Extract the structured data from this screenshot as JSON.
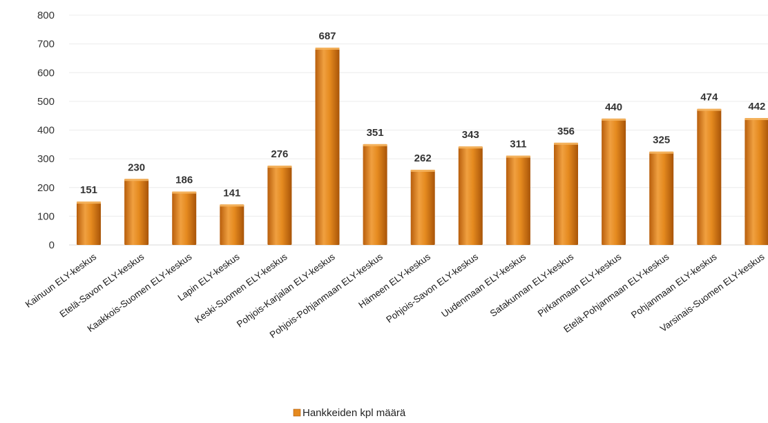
{
  "chart_data": {
    "type": "bar",
    "categories": [
      "Kainuun ELY-keskus",
      "Etelä-Savon ELY-keskus",
      "Kaakkois-Suomen ELY-keskus",
      "Lapin ELY-keskus",
      "Keski-Suomen ELY-keskus",
      "Pohjois-Karjalan ELY-keskus",
      "Pohjois-Pohjanmaan ELY-keskus",
      "Hämeen ELY-keskus",
      "Pohjois-Savon ELY-keskus",
      "Uudenmaan ELY-keskus",
      "Satakunnan ELY-keskus",
      "Pirkanmaan ELY-keskus",
      "Etelä-Pohjanmaan ELY-keskus",
      "Pohjanmaan ELY-keskus",
      "Varsinais-Suomen ELY-keskus"
    ],
    "series": [
      {
        "name": "Hankkeiden kpl määrä",
        "values": [
          151,
          230,
          186,
          141,
          276,
          687,
          351,
          262,
          343,
          311,
          356,
          440,
          325,
          474,
          442
        ],
        "color": "#e58a1f"
      }
    ],
    "title": "",
    "xlabel": "",
    "ylabel": "",
    "ylim": [
      0,
      800
    ],
    "yticks": [
      "0",
      "100",
      "200",
      "300",
      "400",
      "500",
      "600",
      "700",
      "800"
    ],
    "grid": true,
    "legend_position": "bottom"
  }
}
